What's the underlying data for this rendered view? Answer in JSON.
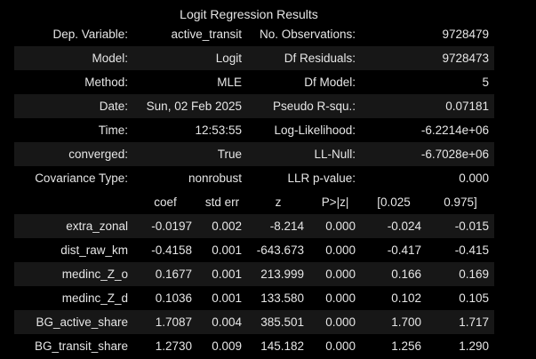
{
  "title": "Logit Regression Results",
  "summary": [
    [
      "Dep. Variable:",
      "active_transit",
      "No. Observations:",
      "9728479"
    ],
    [
      "Model:",
      "Logit",
      "Df Residuals:",
      "9728473"
    ],
    [
      "Method:",
      "MLE",
      "Df Model:",
      "5"
    ],
    [
      "Date:",
      "Sun, 02 Feb 2025",
      "Pseudo R-squ.:",
      "0.07181"
    ],
    [
      "Time:",
      "12:53:55",
      "Log-Likelihood:",
      "-6.2214e+06"
    ],
    [
      "converged:",
      "True",
      "LL-Null:",
      "-6.7028e+06"
    ],
    [
      "Covariance Type:",
      "nonrobust",
      "LLR p-value:",
      "0.000"
    ]
  ],
  "coef_headers": [
    "",
    "coef",
    "std err",
    "z",
    "P>|z|",
    "[0.025",
    "0.975]"
  ],
  "coef_rows": [
    [
      "extra_zonal",
      "-0.0197",
      "0.002",
      "-8.214",
      "0.000",
      "-0.024",
      "-0.015"
    ],
    [
      "dist_raw_km",
      "-0.4158",
      "0.001",
      "-643.673",
      "0.000",
      "-0.417",
      "-0.415"
    ],
    [
      "medinc_Z_o",
      "0.1677",
      "0.001",
      "213.999",
      "0.000",
      "0.166",
      "0.169"
    ],
    [
      "medinc_Z_d",
      "0.1036",
      "0.001",
      "133.580",
      "0.000",
      "0.102",
      "0.105"
    ],
    [
      "BG_active_share",
      "1.7087",
      "0.004",
      "385.501",
      "0.000",
      "1.700",
      "1.717"
    ],
    [
      "BG_transit_share",
      "1.2730",
      "0.009",
      "145.182",
      "0.000",
      "1.256",
      "1.290"
    ]
  ],
  "colors": {
    "background": "#000000",
    "row_shade": "#171717",
    "text": "#e6e6e6"
  }
}
